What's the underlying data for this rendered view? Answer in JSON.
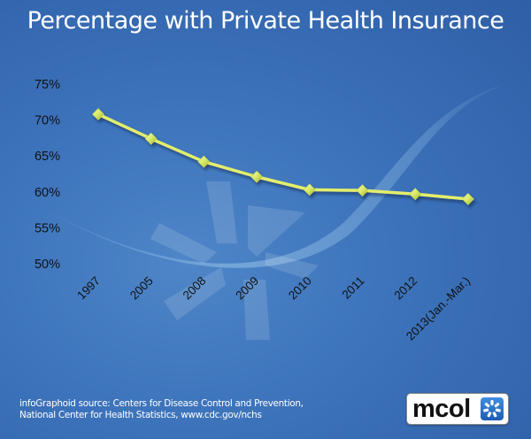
{
  "title": "Percentage with Private Health Insurance",
  "source": {
    "line1": "infoGraphoid source:  Centers for Disease Control and Prevention,",
    "line2": "National Center for Health Statistics, www.cdc.gov/nchs"
  },
  "logo": {
    "text": "mcol",
    "icon": "pinwheel-icon"
  },
  "colors": {
    "background": "#3a6db4",
    "line": "#e2ee6c",
    "marker": "#d8e867",
    "text": "#111111"
  },
  "chart_data": {
    "type": "line",
    "title": "Percentage with Private Health Insurance",
    "xlabel": "",
    "ylabel": "",
    "categories": [
      "1997",
      "2005",
      "2008",
      "2009",
      "2010",
      "2011",
      "2012",
      "2013(Jan.-Mar.)"
    ],
    "series": [
      {
        "name": "Private Health Insurance",
        "values": [
          70.8,
          67.4,
          64.2,
          62.1,
          60.3,
          60.2,
          59.7,
          59.0
        ]
      }
    ],
    "yticks": [
      "50%",
      "55%",
      "60%",
      "65%",
      "70%",
      "75%"
    ],
    "ytick_values": [
      50,
      55,
      60,
      65,
      70,
      75
    ],
    "ylim": [
      50,
      75
    ],
    "grid": false,
    "legend": "none",
    "marker": "diamond"
  }
}
